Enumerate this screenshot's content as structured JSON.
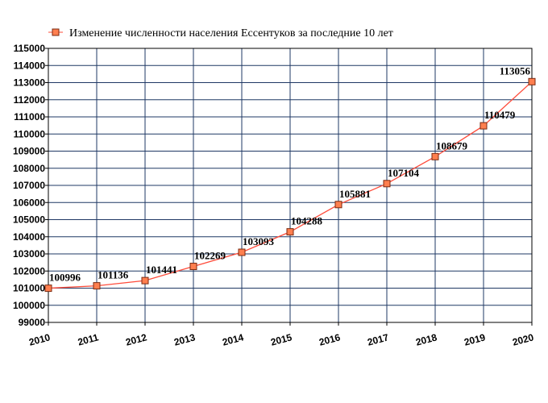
{
  "chart_data": {
    "type": "line",
    "title": "",
    "xlabel": "",
    "ylabel": "",
    "x": [
      2010,
      2011,
      2012,
      2013,
      2014,
      2015,
      2016,
      2017,
      2018,
      2019,
      2020
    ],
    "series": [
      {
        "name": "Изменение численности населения Ессентуков за последние 10 лет",
        "values": [
          100996,
          101136,
          101441,
          102269,
          103093,
          104288,
          105881,
          107104,
          108679,
          110479,
          113056
        ],
        "labels": [
          "100996",
          "101136",
          "101441",
          "102269",
          "103093",
          "104288",
          "105881",
          "107104",
          "108679",
          "110479",
          "113056"
        ]
      }
    ],
    "x_ticks": [
      "2010",
      "2011",
      "2012",
      "2013",
      "2014",
      "2015",
      "2016",
      "2017",
      "2018",
      "2019",
      "2020"
    ],
    "y_ticks": [
      "99000",
      "100000",
      "101000",
      "102000",
      "103000",
      "104000",
      "105000",
      "106000",
      "107000",
      "108000",
      "109000",
      "110000",
      "111000",
      "112000",
      "113000",
      "114000",
      "115000"
    ],
    "xlim": [
      2010,
      2020
    ],
    "ylim": [
      99000,
      115000
    ],
    "grid": true,
    "legend_position": "top-left",
    "colors": {
      "line": "#ff4b3a",
      "marker_fill": "#ff7f4f",
      "marker_stroke": "#7a2a10",
      "grid": "#1f3864",
      "axis": "#000000"
    }
  }
}
